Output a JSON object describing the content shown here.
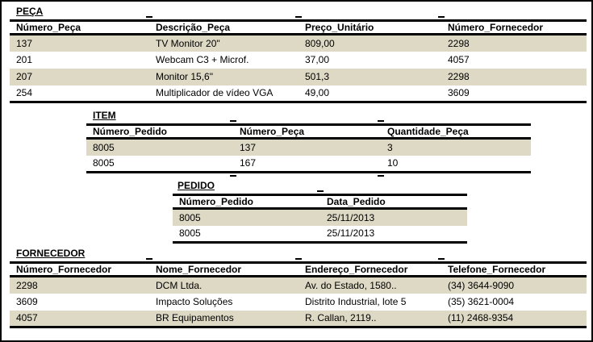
{
  "page": {
    "background": "#FFFFFF",
    "border_color": "#000000"
  },
  "colors": {
    "row_shade": "#DDD9C4",
    "rule": "#000000",
    "text": "#000000"
  },
  "tables": [
    {
      "id": "peca",
      "title": "PEÇA",
      "columns": [
        "Número_Peça",
        "Descrição_Peça",
        "Preço_Unitário",
        "Número_Fornecedor"
      ],
      "rows": [
        [
          "137",
          "TV Monitor 20\"",
          "809,00",
          "2298"
        ],
        [
          "201",
          "Webcam C3 + Microf.",
          "37,00",
          "4057"
        ],
        [
          "207",
          "Monitor 15,6\"",
          "501,3",
          "2298"
        ],
        [
          "254",
          "Multiplicador de vídeo VGA",
          "49,00",
          "3609"
        ]
      ]
    },
    {
      "id": "item",
      "title": "ITEM",
      "columns": [
        "Número_Pedido",
        "Número_Peça",
        "Quantidade_Peça"
      ],
      "rows": [
        [
          "8005",
          "137",
          "3"
        ],
        [
          "8005",
          "167",
          "10"
        ]
      ]
    },
    {
      "id": "pedido",
      "title": "PEDIDO",
      "columns": [
        "Número_Pedido",
        "Data_Pedido"
      ],
      "rows": [
        [
          "8005",
          "25/11/2013"
        ],
        [
          "8005",
          "25/11/2013"
        ]
      ]
    },
    {
      "id": "fornecedor",
      "title": "FORNECEDOR",
      "columns": [
        "Número_Fornecedor",
        "Nome_Fornecedor",
        "Endereço_Fornecedor",
        "Telefone_Fornecedor"
      ],
      "rows": [
        [
          "2298",
          "DCM Ltda.",
          "Av. do Estado, 1580..",
          "(34) 3644-9090"
        ],
        [
          "3609",
          "Impacto Soluções",
          "Distrito Industrial, lote 5",
          "(35) 3621-0004"
        ],
        [
          "4057",
          "BR Equipamentos",
          "R. Callan, 2119..",
          "(11) 2468-9354"
        ]
      ]
    }
  ]
}
